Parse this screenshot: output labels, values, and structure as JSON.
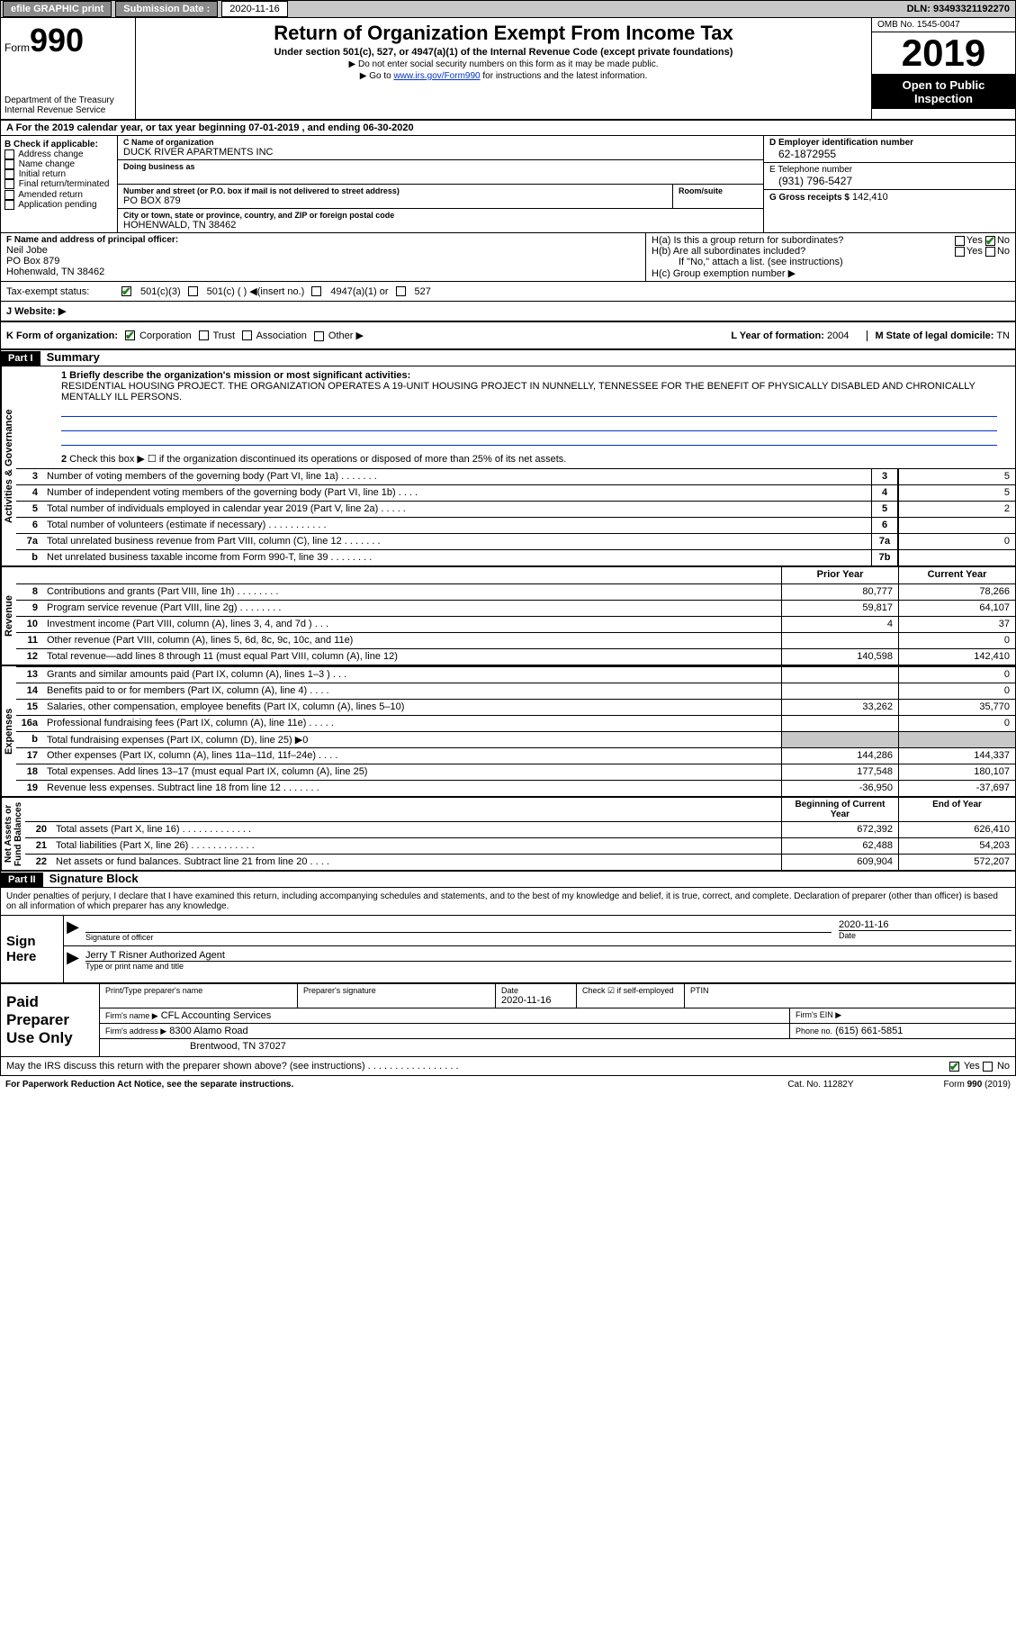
{
  "topbar": {
    "efile_label": "efile GRAPHIC print",
    "submission_label": "Submission Date :",
    "submission_date": "2020-11-16",
    "dln_label": "DLN:",
    "dln": "93493321192270"
  },
  "header": {
    "form_word": "Form",
    "form_num": "990",
    "dept": "Department of the Treasury\nInternal Revenue Service",
    "title": "Return of Organization Exempt From Income Tax",
    "subtitle": "Under section 501(c), 527, or 4947(a)(1) of the Internal Revenue Code (except private foundations)",
    "note1": "▶ Do not enter social security numbers on this form as it may be made public.",
    "note2_pre": "▶ Go to ",
    "note2_link": "www.irs.gov/Form990",
    "note2_post": " for instructions and the latest information.",
    "omb": "OMB No. 1545-0047",
    "year": "2019",
    "inspect": "Open to Public\nInspection"
  },
  "a_row": "A For the 2019 calendar year, or tax year beginning 07-01-2019    , and ending 06-30-2020",
  "b": {
    "hdr": "B Check if applicable:",
    "items": [
      "Address change",
      "Name change",
      "Initial return",
      "Final return/terminated",
      "Amended return",
      "Application pending"
    ]
  },
  "c": {
    "name_lbl": "C Name of organization",
    "name": "DUCK RIVER APARTMENTS INC",
    "dba_lbl": "Doing business as",
    "addr_lbl": "Number and street (or P.O. box if mail is not delivered to street address)",
    "addr": "PO BOX 879",
    "room_lbl": "Room/suite",
    "city_lbl": "City or town, state or province, country, and ZIP or foreign postal code",
    "city": "HOHENWALD, TN  38462"
  },
  "d": {
    "ein_lbl": "D Employer identification number",
    "ein": "62-1872955",
    "phone_lbl": "E Telephone number",
    "phone": "(931) 796-5427",
    "gross_lbl": "G Gross receipts $",
    "gross": "142,410"
  },
  "f": {
    "lbl": "F  Name and address of principal officer:",
    "name": "Neil Jobe",
    "addr1": "PO Box 879",
    "addr2": "Hohenwald, TN  38462"
  },
  "h": {
    "a_lbl": "H(a)  Is this a group return for subordinates?",
    "b_lbl": "H(b)  Are all subordinates included?",
    "b_note": "If \"No,\" attach a list. (see instructions)",
    "c_lbl": "H(c)  Group exemption number ▶",
    "yes": "Yes",
    "no": "No"
  },
  "i": {
    "lbl": "Tax-exempt status:",
    "opts": [
      "501(c)(3)",
      "501(c) (  ) ◀(insert no.)",
      "4947(a)(1) or",
      "527"
    ]
  },
  "j": {
    "lbl": "J   Website: ▶"
  },
  "k": {
    "lbl": "K Form of organization:",
    "opts": [
      "Corporation",
      "Trust",
      "Association",
      "Other ▶"
    ],
    "l_lbl": "L Year of formation:",
    "l_val": "2004",
    "m_lbl": "M State of legal domicile:",
    "m_val": "TN"
  },
  "part1": {
    "hdr": "Part I",
    "title": "Summary",
    "q1_lbl": "1  Briefly describe the organization's mission or most significant activities:",
    "q1_txt": "RESIDENTIAL HOUSING PROJECT. THE ORGANIZATION OPERATES A 19-UNIT HOUSING PROJECT IN NUNNELLY, TENNESSEE FOR THE BENEFIT OF PHYSICALLY DISABLED AND CHRONICALLY MENTALLY ILL PERSONS.",
    "q2": "Check this box ▶ ☐ if the organization discontinued its operations or disposed of more than 25% of its net assets.",
    "vtext_act": "Activities & Governance",
    "vtext_rev": "Revenue",
    "vtext_exp": "Expenses",
    "vtext_net": "Net Assets or\nFund Balances",
    "prior_hdr": "Prior Year",
    "current_hdr": "Current Year",
    "begin_hdr": "Beginning of Current Year",
    "end_hdr": "End of Year",
    "rows_gov": [
      {
        "n": "3",
        "d": "Number of voting members of the governing body (Part VI, line 1a)   .    .    .    .    .    .    .",
        "box": "3",
        "v": "5"
      },
      {
        "n": "4",
        "d": "Number of independent voting members of the governing body (Part VI, line 1b)   .    .    .    .",
        "box": "4",
        "v": "5"
      },
      {
        "n": "5",
        "d": "Total number of individuals employed in calendar year 2019 (Part V, line 2a)   .    .    .    .    .",
        "box": "5",
        "v": "2"
      },
      {
        "n": "6",
        "d": "Total number of volunteers (estimate if necessary)    .    .    .    .    .    .    .    .    .    .    .",
        "box": "6",
        "v": ""
      },
      {
        "n": "7a",
        "d": "Total unrelated business revenue from Part VIII, column (C), line 12   .    .    .    .    .    .    .",
        "box": "7a",
        "v": "0"
      },
      {
        "n": "b",
        "d": "Net unrelated business taxable income from Form 990-T, line 39   .    .    .    .    .    .    .    .",
        "box": "7b",
        "v": ""
      }
    ],
    "rows_rev": [
      {
        "n": "8",
        "d": "Contributions and grants (Part VIII, line 1h)   .    .    .    .    .    .    .    .",
        "p": "80,777",
        "c": "78,266"
      },
      {
        "n": "9",
        "d": "Program service revenue (Part VIII, line 2g)    .    .    .    .    .    .    .    .",
        "p": "59,817",
        "c": "64,107"
      },
      {
        "n": "10",
        "d": "Investment income (Part VIII, column (A), lines 3, 4, and 7d )    .    .    .",
        "p": "4",
        "c": "37"
      },
      {
        "n": "11",
        "d": "Other revenue (Part VIII, column (A), lines 5, 6d, 8c, 9c, 10c, and 11e)",
        "p": "",
        "c": "0"
      },
      {
        "n": "12",
        "d": "Total revenue—add lines 8 through 11 (must equal Part VIII, column (A), line 12)",
        "p": "140,598",
        "c": "142,410"
      }
    ],
    "rows_exp": [
      {
        "n": "13",
        "d": "Grants and similar amounts paid (Part IX, column (A), lines 1–3 )   .    .    .",
        "p": "",
        "c": "0"
      },
      {
        "n": "14",
        "d": "Benefits paid to or for members (Part IX, column (A), line 4)   .    .    .    .",
        "p": "",
        "c": "0"
      },
      {
        "n": "15",
        "d": "Salaries, other compensation, employee benefits (Part IX, column (A), lines 5–10)",
        "p": "33,262",
        "c": "35,770"
      },
      {
        "n": "16a",
        "d": "Professional fundraising fees (Part IX, column (A), line 11e)   .    .    .    .    .",
        "p": "",
        "c": "0"
      },
      {
        "n": "b",
        "d": "Total fundraising expenses (Part IX, column (D), line 25) ▶0",
        "gray": true
      },
      {
        "n": "17",
        "d": "Other expenses (Part IX, column (A), lines 11a–11d, 11f–24e)   .    .    .    .",
        "p": "144,286",
        "c": "144,337"
      },
      {
        "n": "18",
        "d": "Total expenses. Add lines 13–17 (must equal Part IX, column (A), line 25)",
        "p": "177,548",
        "c": "180,107"
      },
      {
        "n": "19",
        "d": "Revenue less expenses. Subtract line 18 from line 12   .    .    .    .    .    .    .",
        "p": "-36,950",
        "c": "-37,697"
      }
    ],
    "rows_net": [
      {
        "n": "20",
        "d": "Total assets (Part X, line 16)   .    .    .    .    .    .    .    .    .    .    .    .    .",
        "p": "672,392",
        "c": "626,410"
      },
      {
        "n": "21",
        "d": "Total liabilities (Part X, line 26)   .    .    .    .    .    .    .    .    .    .    .    .",
        "p": "62,488",
        "c": "54,203"
      },
      {
        "n": "22",
        "d": "Net assets or fund balances. Subtract line 21 from line 20    .    .    .    .",
        "p": "609,904",
        "c": "572,207"
      }
    ]
  },
  "part2": {
    "hdr": "Part II",
    "title": "Signature Block",
    "decl": "Under penalties of perjury, I declare that I have examined this return, including accompanying schedules and statements, and to the best of my knowledge and belief, it is true, correct, and complete. Declaration of preparer (other than officer) is based on all information of which preparer has any knowledge.",
    "sign_here": "Sign Here",
    "sig_officer_lbl": "Signature of officer",
    "sig_date": "2020-11-16",
    "date_lbl": "Date",
    "name_title": "Jerry T Risner  Authorized Agent",
    "name_title_lbl": "Type or print name and title",
    "paid": "Paid Preparer Use Only",
    "prep_name_lbl": "Print/Type preparer's name",
    "prep_sig_lbl": "Preparer's signature",
    "prep_date_lbl": "Date",
    "prep_date": "2020-11-16",
    "check_lbl": "Check ☑ if self-employed",
    "ptin_lbl": "PTIN",
    "firm_name_lbl": "Firm's name    ▶",
    "firm_name": "CFL Accounting Services",
    "firm_ein_lbl": "Firm's EIN ▶",
    "firm_addr_lbl": "Firm's address ▶",
    "firm_addr1": "8300 Alamo Road",
    "firm_addr2": "Brentwood, TN  37027",
    "phone_lbl": "Phone no.",
    "phone": "(615) 661-5851",
    "discuss": "May the IRS discuss this return with the preparer shown above? (see instructions)   .    .    .    .    .    .    .    .    .    .    .    .    .    .    .    .    ."
  },
  "footer": {
    "left": "For Paperwork Reduction Act Notice, see the separate instructions.",
    "mid": "Cat. No. 11282Y",
    "right": "Form 990 (2019)"
  }
}
